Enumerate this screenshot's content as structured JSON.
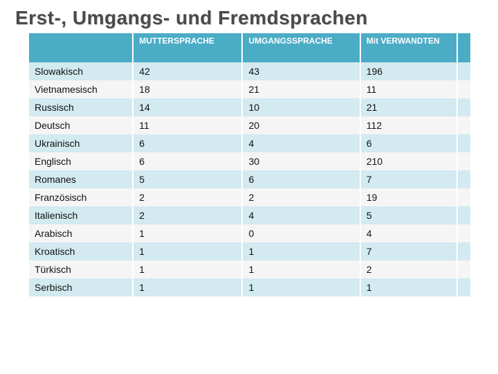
{
  "title": "Erst-, Umgangs- und Fremdsprachen",
  "table": {
    "header_bg": "#4bacc6",
    "header_color": "#ffffff",
    "row_odd_bg": "#d2eaf0",
    "row_even_bg": "#f5f5f5",
    "columns": [
      "",
      "MUTTERSPRACHE",
      "UMGANGSSPRACHE",
      "Mit VERWANDTEN"
    ],
    "rows": [
      {
        "lang": "Slowakisch",
        "mutter": "42",
        "umgang": "43",
        "verw": "196"
      },
      {
        "lang": "Vietnamesisch",
        "mutter": "18",
        "umgang": "21",
        "verw": "11"
      },
      {
        "lang": "Russisch",
        "mutter": "14",
        "umgang": "10",
        "verw": "21"
      },
      {
        "lang": "Deutsch",
        "mutter": "11",
        "umgang": "20",
        "verw": "112"
      },
      {
        "lang": "Ukrainisch",
        "mutter": "6",
        "umgang": "4",
        "verw": "6"
      },
      {
        "lang": "Englisch",
        "mutter": "6",
        "umgang": "30",
        "verw": "210"
      },
      {
        "lang": "Romanes",
        "mutter": "5",
        "umgang": "6",
        "verw": "7"
      },
      {
        "lang": "Französisch",
        "mutter": "2",
        "umgang": "2",
        "verw": "19"
      },
      {
        "lang": "Italienisch",
        "mutter": "2",
        "umgang": "4",
        "verw": "5"
      },
      {
        "lang": "Arabisch",
        "mutter": "1",
        "umgang": "0",
        "verw": "4"
      },
      {
        "lang": "Kroatisch",
        "mutter": "1",
        "umgang": "1",
        "verw": "7"
      },
      {
        "lang": "Türkisch",
        "mutter": "1",
        "umgang": "1",
        "verw": "2"
      },
      {
        "lang": "Serbisch",
        "mutter": "1",
        "umgang": "1",
        "verw": "1"
      }
    ]
  }
}
